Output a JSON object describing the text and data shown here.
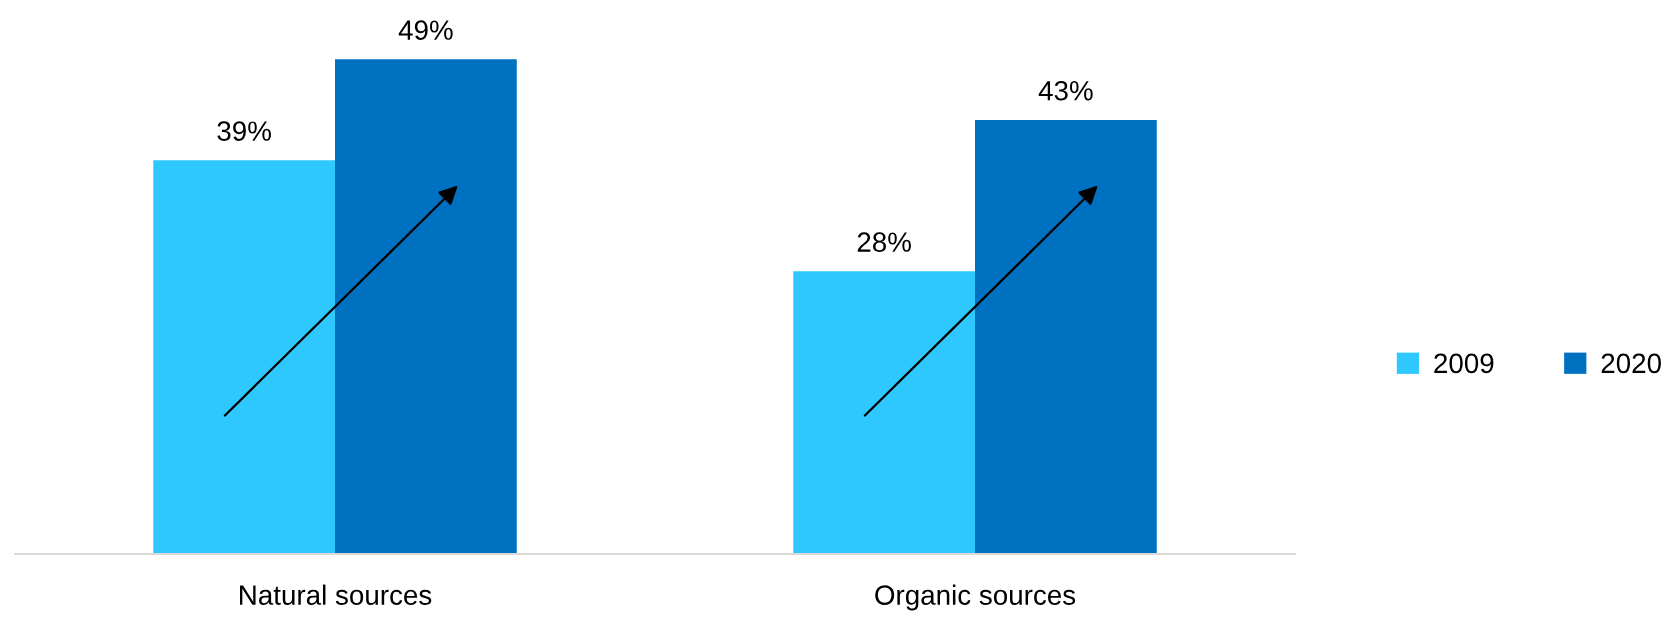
{
  "chart_data": {
    "type": "bar",
    "categories": [
      "Natural sources",
      "Organic sources"
    ],
    "series": [
      {
        "name": "2009",
        "color": "#2ec8fe",
        "values": [
          39,
          28
        ],
        "value_labels": [
          "39%",
          "28%"
        ]
      },
      {
        "name": "2020",
        "color": "#0070c0",
        "values": [
          49,
          43
        ],
        "value_labels": [
          "49%",
          "43%"
        ]
      }
    ],
    "legend": "right",
    "grid": false
  }
}
